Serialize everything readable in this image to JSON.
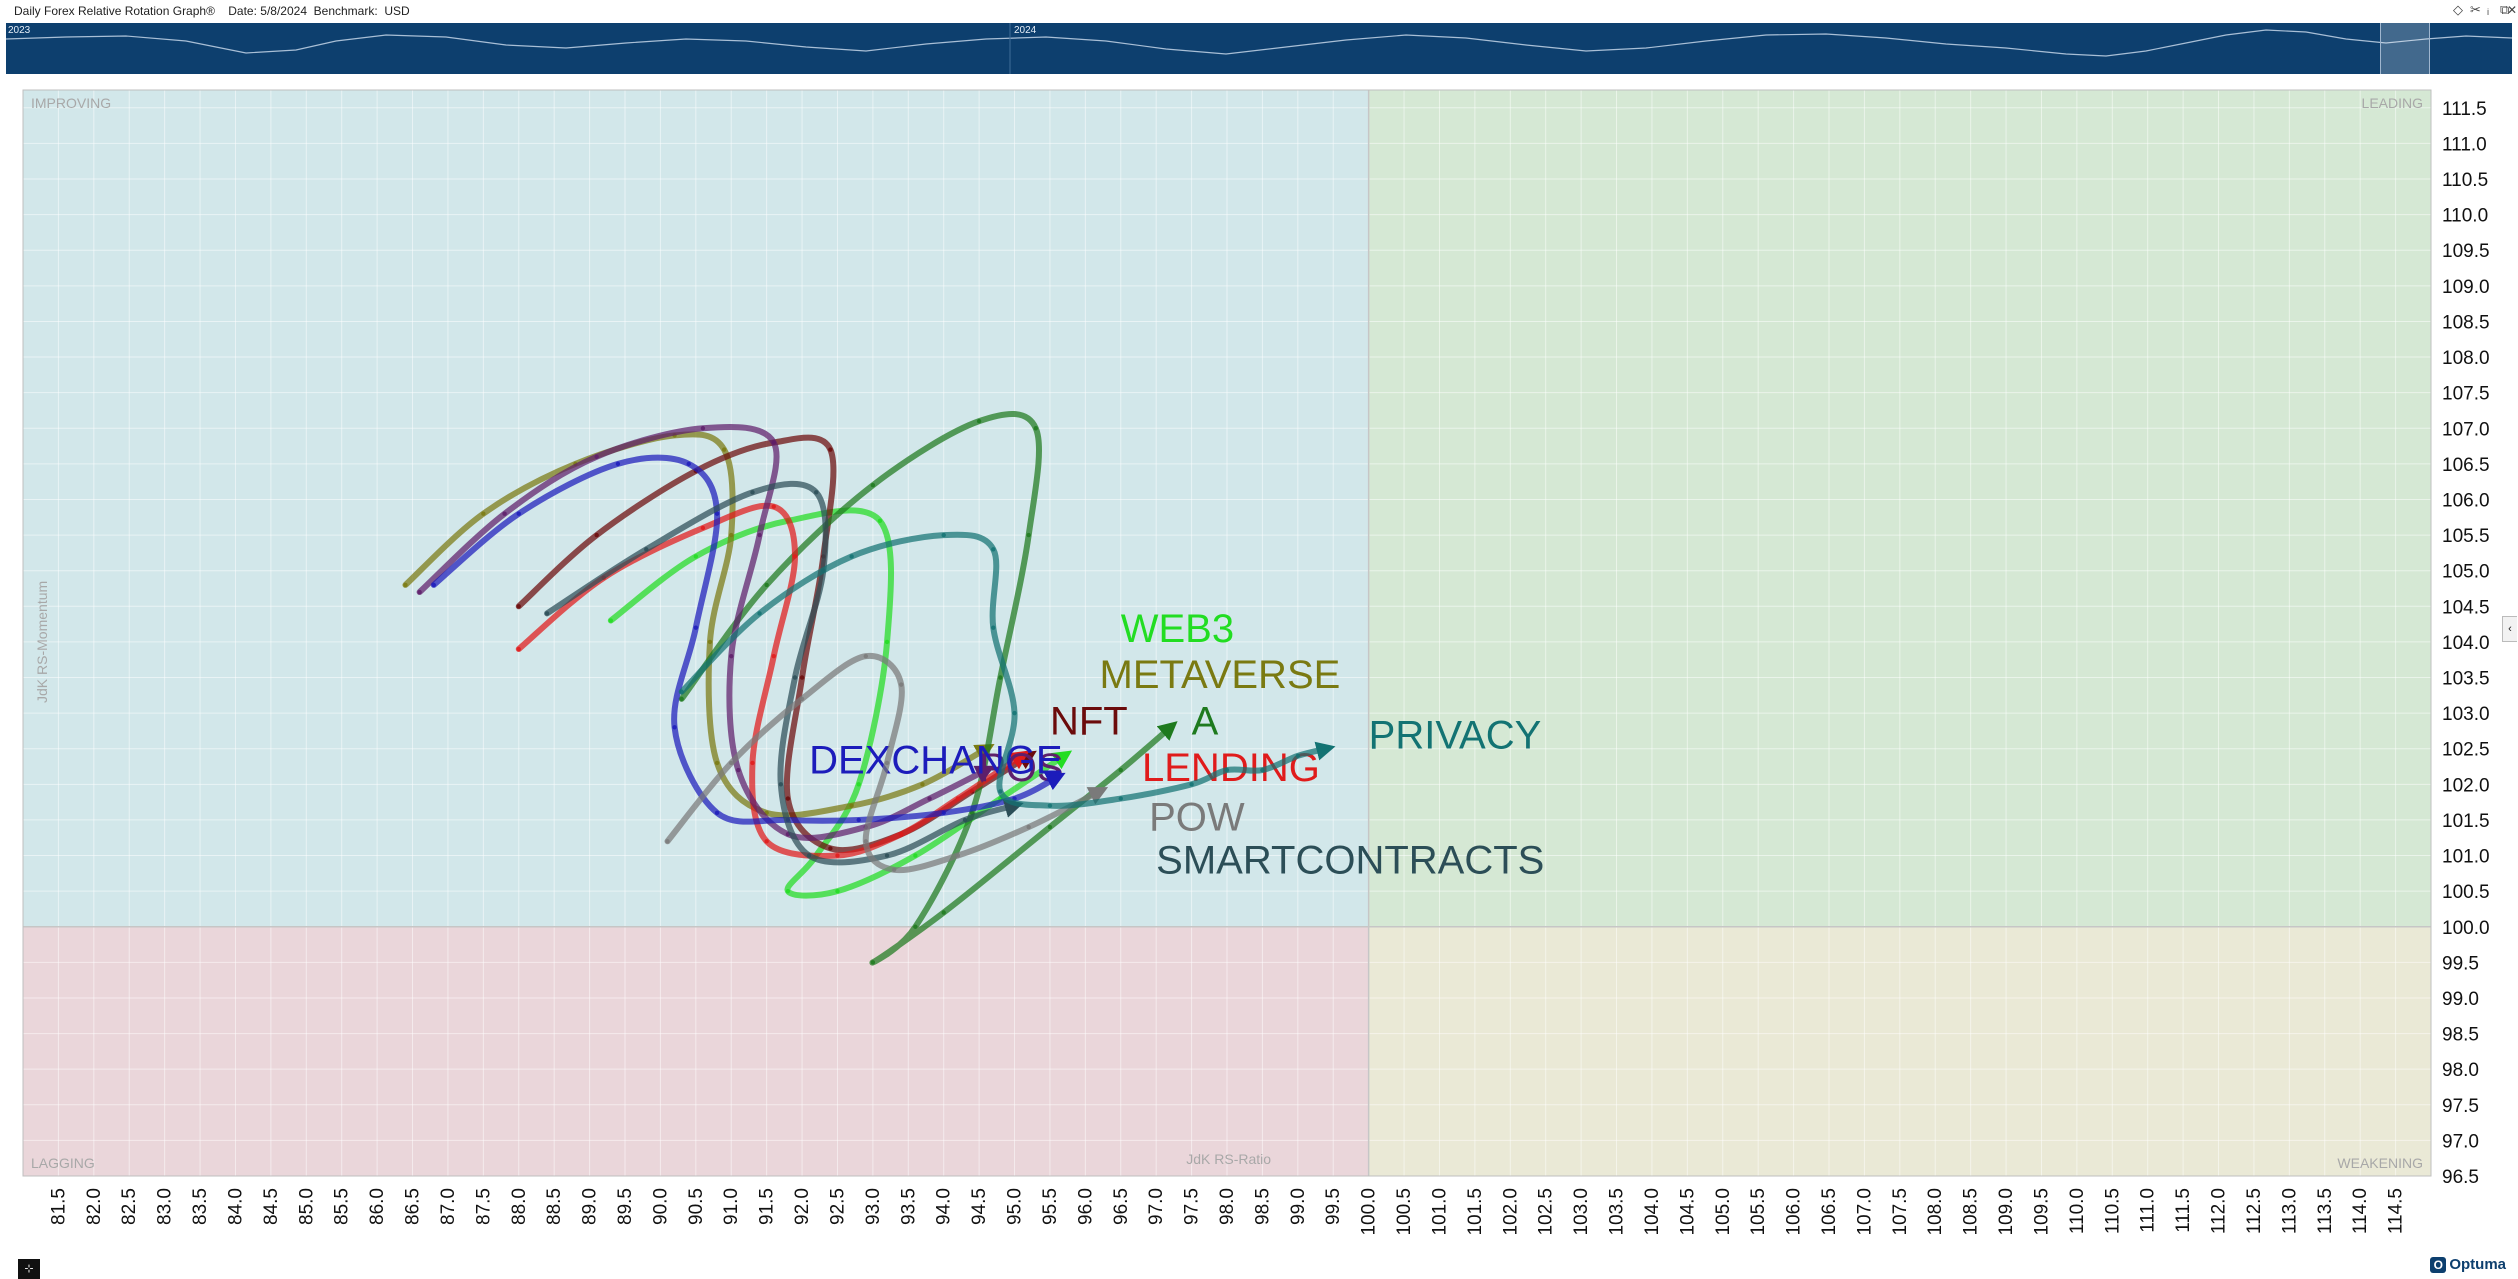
{
  "window": {
    "title": "Daily Forex Relative Rotation Graph®    Date: 5/8/2024  Benchmark:  USD",
    "icons": [
      "diamond-icon",
      "pin-icon",
      "info-icon",
      "restore-icon",
      "close-icon"
    ]
  },
  "timeline": {
    "years": [
      "2023",
      "2024"
    ]
  },
  "footer": {
    "brand": "Optuma",
    "corner_button": "⊹"
  },
  "chart_data": {
    "type": "scatter",
    "title": "",
    "xlabel": "JdK RS-Ratio",
    "ylabel": "JdK RS-Momentum",
    "xlim": [
      81.0,
      115.0
    ],
    "ylim": [
      96.5,
      111.75
    ],
    "x_ticks": [
      "81.5",
      "82.0",
      "82.5",
      "83.0",
      "83.5",
      "84.0",
      "84.5",
      "85.0",
      "85.5",
      "86.0",
      "86.5",
      "87.0",
      "87.5",
      "88.0",
      "88.5",
      "89.0",
      "89.5",
      "90.0",
      "90.5",
      "91.0",
      "91.5",
      "92.0",
      "92.5",
      "93.0",
      "93.5",
      "94.0",
      "94.5",
      "95.0",
      "95.5",
      "96.0",
      "96.5",
      "97.0",
      "97.5",
      "98.0",
      "98.5",
      "99.0",
      "99.5",
      "100.0",
      "100.5",
      "101.0",
      "101.5",
      "102.0",
      "102.5",
      "103.0",
      "103.5",
      "104.0",
      "104.5",
      "105.0",
      "105.5",
      "106.0",
      "106.5",
      "107.0",
      "107.5",
      "108.0",
      "108.5",
      "109.0",
      "109.5",
      "110.0",
      "110.5",
      "111.0",
      "111.5",
      "112.0",
      "112.5",
      "113.0",
      "113.5",
      "114.0",
      "114.5"
    ],
    "y_ticks": [
      "111.5",
      "111.0",
      "110.5",
      "110.0",
      "109.5",
      "109.0",
      "108.5",
      "108.0",
      "107.5",
      "107.0",
      "106.5",
      "106.0",
      "105.5",
      "105.0",
      "104.5",
      "104.0",
      "103.5",
      "103.0",
      "102.5",
      "102.0",
      "101.5",
      "101.0",
      "100.5",
      "100.0",
      "99.5",
      "99.0",
      "98.5",
      "98.0",
      "97.5",
      "97.0",
      "96.5"
    ],
    "grid": true,
    "quadrants": [
      {
        "name": "IMPROVING",
        "color": "#d2e7ea"
      },
      {
        "name": "LEADING",
        "color": "#d5e8d4"
      },
      {
        "name": "LAGGING",
        "color": "#ead6da"
      },
      {
        "name": "WEAKENING",
        "color": "#eae9d6"
      }
    ],
    "series": [
      {
        "name": "WEB3",
        "color": "#22dd22",
        "label_at": [
          96.5,
          104.0
        ],
        "points": [
          [
            89.3,
            104.3
          ],
          [
            90.5,
            105.2
          ],
          [
            91.8,
            105.7
          ],
          [
            93.1,
            105.7
          ],
          [
            93.2,
            104.0
          ],
          [
            92.8,
            102.0
          ],
          [
            92.2,
            101.0
          ],
          [
            91.8,
            100.5
          ],
          [
            92.5,
            100.5
          ],
          [
            93.6,
            101.0
          ],
          [
            94.8,
            101.8
          ],
          [
            95.7,
            102.4
          ]
        ]
      },
      {
        "name": "METAVERSE",
        "color": "#7a7a12",
        "label_at": [
          96.2,
          103.35
        ],
        "points": [
          [
            86.4,
            104.8
          ],
          [
            87.5,
            105.8
          ],
          [
            88.8,
            106.5
          ],
          [
            90.2,
            106.9
          ],
          [
            90.9,
            106.7
          ],
          [
            91.0,
            105.5
          ],
          [
            90.7,
            104.0
          ],
          [
            90.8,
            102.3
          ],
          [
            91.5,
            101.6
          ],
          [
            92.7,
            101.7
          ],
          [
            93.7,
            102.0
          ],
          [
            94.6,
            102.5
          ]
        ]
      },
      {
        "name": "NFT",
        "color": "#6b0b0b",
        "label_at": [
          95.5,
          102.7
        ],
        "points": [
          [
            88.0,
            104.5
          ],
          [
            89.1,
            105.5
          ],
          [
            90.5,
            106.4
          ],
          [
            91.6,
            106.8
          ],
          [
            92.4,
            106.7
          ],
          [
            92.3,
            105.2
          ],
          [
            92.0,
            103.5
          ],
          [
            91.8,
            101.8
          ],
          [
            92.4,
            101.1
          ],
          [
            93.4,
            101.3
          ],
          [
            94.4,
            101.9
          ],
          [
            95.2,
            102.4
          ]
        ]
      },
      {
        "name": "A",
        "color": "#1e7a1e",
        "label_at": [
          97.5,
          102.7
        ],
        "points": [
          [
            90.3,
            103.2
          ],
          [
            91.5,
            104.8
          ],
          [
            93.0,
            106.2
          ],
          [
            94.5,
            107.1
          ],
          [
            95.3,
            107.0
          ],
          [
            95.2,
            105.5
          ],
          [
            94.8,
            103.5
          ],
          [
            94.4,
            101.6
          ],
          [
            93.6,
            100.0
          ],
          [
            93.0,
            99.5
          ],
          [
            94.0,
            100.2
          ],
          [
            95.5,
            101.4
          ],
          [
            96.5,
            102.2
          ],
          [
            97.2,
            102.8
          ]
        ]
      },
      {
        "name": "LENDING",
        "color": "#e01b1b",
        "label_at": [
          96.8,
          102.05
        ],
        "points": [
          [
            88.0,
            103.9
          ],
          [
            89.2,
            104.9
          ],
          [
            90.6,
            105.6
          ],
          [
            91.6,
            105.9
          ],
          [
            91.9,
            105.2
          ],
          [
            91.6,
            103.8
          ],
          [
            91.3,
            102.3
          ],
          [
            91.5,
            101.2
          ],
          [
            92.5,
            101.0
          ],
          [
            93.4,
            101.3
          ],
          [
            94.2,
            101.8
          ],
          [
            95.1,
            102.4
          ]
        ]
      },
      {
        "name": "POS",
        "color": "#5e1f6b",
        "label_at": [
          94.5,
          102.05
        ],
        "points": [
          [
            86.6,
            104.7
          ],
          [
            87.8,
            105.8
          ],
          [
            89.1,
            106.6
          ],
          [
            90.6,
            107.0
          ],
          [
            91.6,
            106.8
          ],
          [
            91.4,
            105.5
          ],
          [
            91.0,
            103.8
          ],
          [
            91.1,
            102.2
          ],
          [
            91.8,
            101.3
          ],
          [
            92.9,
            101.4
          ],
          [
            93.8,
            101.8
          ],
          [
            94.6,
            102.2
          ]
        ]
      },
      {
        "name": "DEXCHANGE",
        "color": "#1c1cbb",
        "label_at": [
          92.1,
          102.15
        ],
        "points": [
          [
            86.8,
            104.8
          ],
          [
            88.0,
            105.8
          ],
          [
            89.4,
            106.5
          ],
          [
            90.4,
            106.5
          ],
          [
            90.8,
            105.8
          ],
          [
            90.5,
            104.2
          ],
          [
            90.2,
            102.8
          ],
          [
            90.8,
            101.6
          ],
          [
            91.8,
            101.5
          ],
          [
            92.8,
            101.5
          ],
          [
            94.0,
            101.6
          ],
          [
            95.0,
            101.8
          ],
          [
            95.6,
            102.1
          ]
        ]
      },
      {
        "name": "SMARTCONTRACTS",
        "color": "#2c4e57",
        "label_at": [
          97.0,
          100.75
        ],
        "points": [
          [
            88.4,
            104.4
          ],
          [
            89.8,
            105.3
          ],
          [
            91.3,
            106.1
          ],
          [
            92.2,
            106.1
          ],
          [
            92.3,
            105.0
          ],
          [
            91.9,
            103.5
          ],
          [
            91.7,
            102.0
          ],
          [
            92.1,
            101.0
          ],
          [
            93.2,
            101.0
          ],
          [
            94.3,
            101.5
          ],
          [
            95.0,
            101.7
          ]
        ]
      },
      {
        "name": "POW",
        "color": "#7a7a7a",
        "label_at": [
          96.9,
          101.35
        ],
        "points": [
          [
            90.1,
            101.2
          ],
          [
            91.0,
            102.3
          ],
          [
            92.0,
            103.2
          ],
          [
            92.9,
            103.8
          ],
          [
            93.4,
            103.4
          ],
          [
            93.2,
            102.3
          ],
          [
            92.9,
            101.2
          ],
          [
            93.3,
            100.8
          ],
          [
            94.2,
            101.0
          ],
          [
            95.2,
            101.4
          ],
          [
            96.2,
            101.9
          ]
        ]
      },
      {
        "name": "PRIVACY",
        "color": "#137373",
        "label_at": [
          100.0,
          102.5
        ],
        "points": [
          [
            90.3,
            103.3
          ],
          [
            91.4,
            104.4
          ],
          [
            92.7,
            105.2
          ],
          [
            94.0,
            105.5
          ],
          [
            94.7,
            105.3
          ],
          [
            94.7,
            104.2
          ],
          [
            95.0,
            103.0
          ],
          [
            94.8,
            101.9
          ],
          [
            95.5,
            101.7
          ],
          [
            96.5,
            101.8
          ],
          [
            97.5,
            102.0
          ],
          [
            98.0,
            102.2
          ],
          [
            98.5,
            102.2
          ],
          [
            99.0,
            102.4
          ],
          [
            99.4,
            102.5
          ]
        ]
      }
    ]
  }
}
